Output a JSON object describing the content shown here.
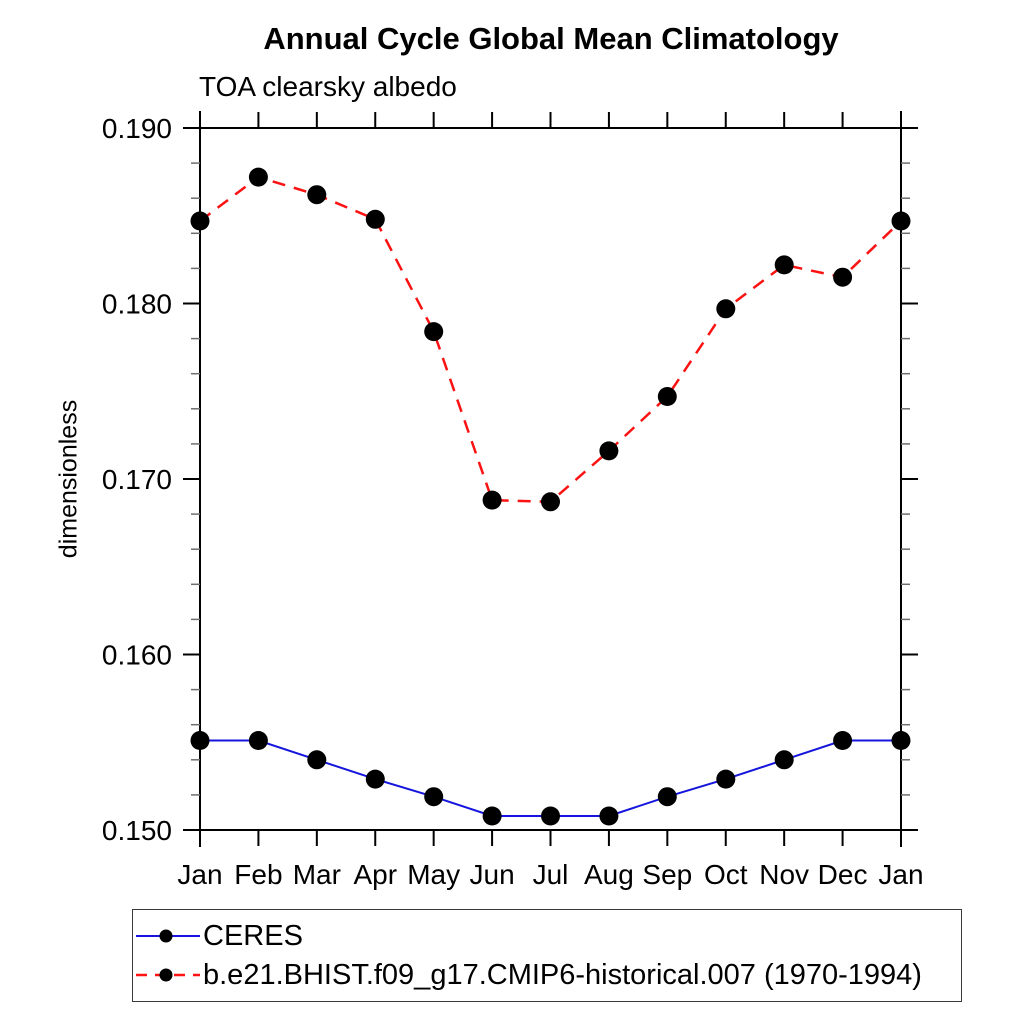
{
  "header": {
    "title": "Annual Cycle Global Mean Climatology",
    "subtitle": "TOA clearsky albedo"
  },
  "chart_data": {
    "type": "line",
    "title": "Annual Cycle Global Mean Climatology",
    "subtitle": "TOA clearsky albedo",
    "xlabel": "",
    "ylabel": "dimensionless",
    "x_categories": [
      "Jan",
      "Feb",
      "Mar",
      "Apr",
      "May",
      "Jun",
      "Jul",
      "Aug",
      "Sep",
      "Oct",
      "Nov",
      "Dec",
      "Jan"
    ],
    "ylim": [
      0.15,
      0.19
    ],
    "y_major_step": 0.01,
    "y_minor_step": 0.002,
    "y_tick_decimals": 3,
    "grid": false,
    "legend_position": "bottom-left-box",
    "axis_color": "#000000",
    "minor_tick_color": "#6e6e6e",
    "marker_color": "#000000",
    "series": [
      {
        "name": "CERES",
        "line_color": "#1515dd",
        "line_style": "solid",
        "marker": "circle",
        "values": [
          0.1551,
          0.1551,
          0.154,
          0.1529,
          0.1519,
          0.1508,
          0.1508,
          0.1508,
          0.1519,
          0.1529,
          0.154,
          0.1551,
          0.1551
        ]
      },
      {
        "name": "b.e21.BHIST.f09_g17.CMIP6-historical.007 (1970-1994)",
        "line_color": "#fb1212",
        "line_style": "dashed",
        "marker": "circle",
        "values": [
          0.1847,
          0.1872,
          0.1862,
          0.1848,
          0.1784,
          0.1688,
          0.1687,
          0.1716,
          0.1747,
          0.1797,
          0.1822,
          0.1815,
          0.1847
        ]
      }
    ]
  }
}
